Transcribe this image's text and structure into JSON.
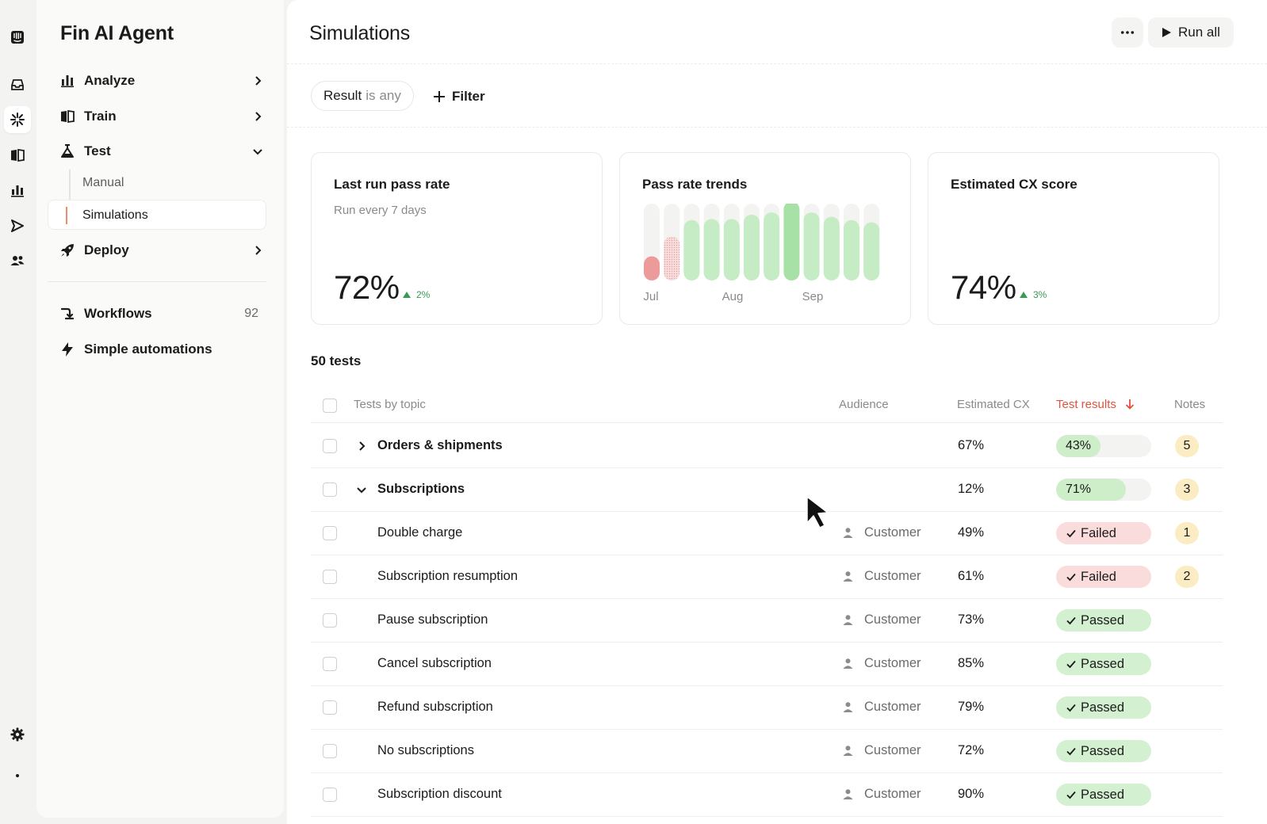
{
  "nav": {
    "title": "Fin AI Agent",
    "items": [
      {
        "label": "Analyze",
        "icon": "bar-chart-icon"
      },
      {
        "label": "Train",
        "icon": "book-icon"
      },
      {
        "label": "Test",
        "icon": "flask-icon"
      },
      {
        "label": "Deploy",
        "icon": "rocket-icon"
      }
    ],
    "test_sub": [
      "Manual",
      "Simulations"
    ],
    "workflows": {
      "label": "Workflows",
      "count": "92"
    },
    "automations": {
      "label": "Simple automations"
    }
  },
  "header": {
    "title": "Simulations",
    "more": "•••",
    "run_all": "Run all"
  },
  "filter": {
    "field": "Result",
    "op": "is",
    "value": "any",
    "add_label": "Filter"
  },
  "cards": {
    "pass_rate": {
      "title": "Last run pass rate",
      "sub": "Run every 7 days",
      "value": "72%",
      "delta": "2%"
    },
    "trends": {
      "title": "Pass rate trends"
    },
    "cx": {
      "title": "Estimated CX score",
      "value": "74%",
      "delta": "3%"
    }
  },
  "chart_data": {
    "type": "bar",
    "title": "Pass rate trends",
    "x_labels": [
      "Jul",
      "Aug",
      "Sep"
    ],
    "values": [
      22,
      40,
      55,
      56,
      56,
      60,
      62,
      72,
      62,
      58,
      55,
      53
    ],
    "ylim": [
      0,
      70
    ]
  },
  "table": {
    "count_label": "50 tests",
    "headers": {
      "topic": "Tests by topic",
      "audience": "Audience",
      "cx": "Estimated CX",
      "results": "Test results",
      "notes": "Notes"
    },
    "rows": [
      {
        "topic": "Orders & shipments",
        "group": true,
        "expanded": false,
        "audience": "",
        "cx": "67%",
        "result": "43%",
        "result_pct": 43,
        "notes": "5"
      },
      {
        "topic": "Subscriptions",
        "group": true,
        "expanded": true,
        "audience": "",
        "cx": "12%",
        "result": "71%",
        "result_pct": 71,
        "notes": "3"
      },
      {
        "topic": "Double charge",
        "group": false,
        "audience": "Customer",
        "cx": "49%",
        "status": "Failed",
        "notes": "1"
      },
      {
        "topic": "Subscription resumption",
        "group": false,
        "audience": "Customer",
        "cx": "61%",
        "status": "Failed",
        "notes": "2"
      },
      {
        "topic": "Pause subscription",
        "group": false,
        "audience": "Customer",
        "cx": "73%",
        "status": "Passed",
        "notes": ""
      },
      {
        "topic": "Cancel subscription",
        "group": false,
        "audience": "Customer",
        "cx": "85%",
        "status": "Passed",
        "notes": ""
      },
      {
        "topic": "Refund subscription",
        "group": false,
        "audience": "Customer",
        "cx": "79%",
        "status": "Passed",
        "notes": ""
      },
      {
        "topic": "No subscriptions",
        "group": false,
        "audience": "Customer",
        "cx": "72%",
        "status": "Passed",
        "notes": ""
      },
      {
        "topic": "Subscription discount",
        "group": false,
        "audience": "Customer",
        "cx": "90%",
        "status": "Passed",
        "notes": ""
      }
    ]
  },
  "colors": {
    "accent": "#e0533d",
    "pass": "#cdeec9",
    "fail": "#fbdcdc",
    "note": "#fbecc3"
  }
}
